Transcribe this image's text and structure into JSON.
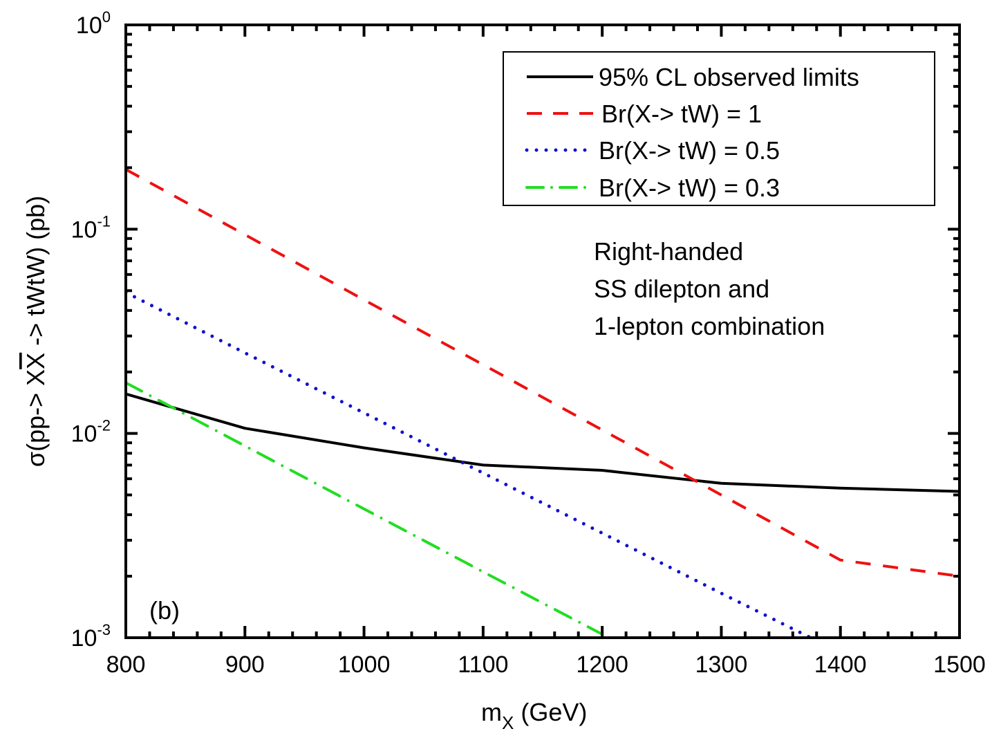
{
  "chart_data": {
    "type": "line",
    "title": "",
    "xlabel": "m",
    "xlabel_sub": "X",
    "xlabel_unit": " (GeV)",
    "ylabel": "σ(pp-> XX̄ -> tWtW) (pb)",
    "ylabel_parts": {
      "pre": "σ(pp-> X",
      "bar": "X",
      "post": " -> tWtW) (pb)"
    },
    "xlim": [
      800,
      1500
    ],
    "ylim": [
      0.001,
      1
    ],
    "yscale": "log",
    "grid": false,
    "x_ticks": [
      "800",
      "900",
      "1000",
      "1100",
      "1200",
      "1300",
      "1400",
      "1500"
    ],
    "x_tick_values": [
      800,
      900,
      1000,
      1100,
      1200,
      1300,
      1400,
      1500
    ],
    "y_ticks": [
      {
        "base": "10",
        "exp": "0",
        "value": 1
      },
      {
        "base": "10",
        "exp": "-1",
        "value": 0.1
      },
      {
        "base": "10",
        "exp": "-2",
        "value": 0.01
      },
      {
        "base": "10",
        "exp": "-3",
        "value": 0.001
      }
    ],
    "legend_position": "top-right",
    "series": [
      {
        "name": "95% CL observed limits",
        "color": "#000000",
        "style": "solid",
        "x": [
          800,
          900,
          1000,
          1100,
          1200,
          1300,
          1400,
          1500
        ],
        "values": [
          0.0156,
          0.0106,
          0.0085,
          0.007,
          0.0066,
          0.0057,
          0.0054,
          0.0052
        ]
      },
      {
        "name": "Br(X-> tW) = 1",
        "color": "#ee1111",
        "style": "dashed",
        "x": [
          800,
          900,
          1000,
          1100,
          1200,
          1300,
          1400,
          1500
        ],
        "values": [
          0.196,
          0.094,
          0.0451,
          0.0217,
          0.0104,
          0.005,
          0.0024,
          0.002
        ]
      },
      {
        "name": "Br(X-> tW) = 0.5",
        "color": "#1111cc",
        "style": "dotted",
        "x": [
          800,
          900,
          1000,
          1100,
          1200,
          1300,
          1375
        ],
        "values": [
          0.049,
          0.0248,
          0.0126,
          0.0064,
          0.00325,
          0.00165,
          0.001
        ]
      },
      {
        "name": "Br(X-> tW) = 0.3",
        "color": "#22dd22",
        "style": "dashdot",
        "x": [
          800,
          900,
          1000,
          1100,
          1200
        ],
        "values": [
          0.0177,
          0.00869,
          0.00427,
          0.0021,
          0.00104
        ]
      }
    ],
    "annotations": {
      "panel_label": "(b)",
      "text_lines": [
        "Right-handed",
        "SS dilepton and",
        "1-lepton combination"
      ]
    }
  }
}
